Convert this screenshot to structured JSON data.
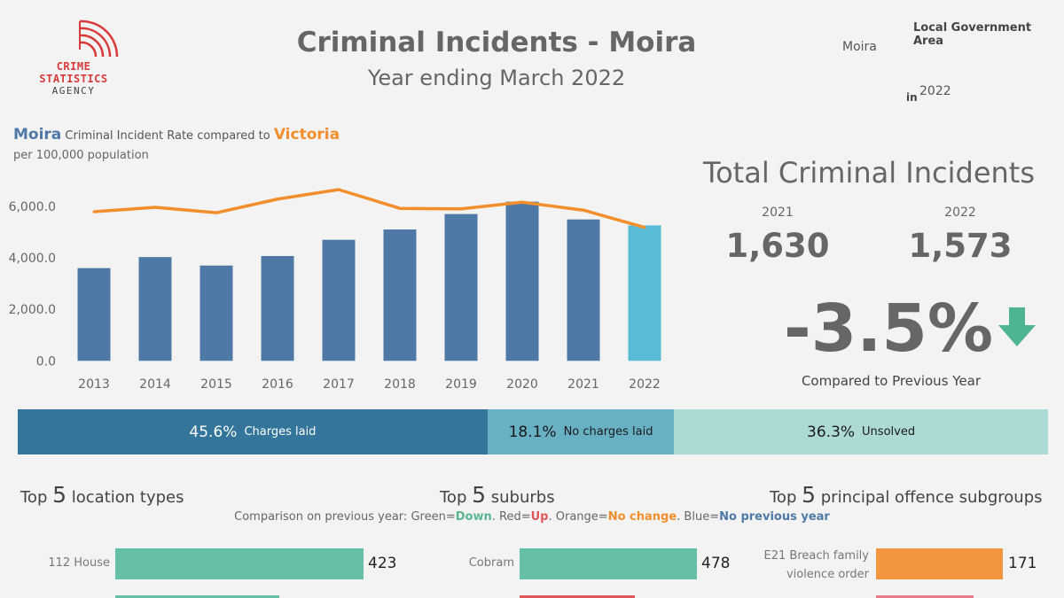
{
  "brand": {
    "logo_line1": "CRIME",
    "logo_line2": "STATISTICS",
    "logo_line3": "AGENCY",
    "accent": "#d83a3a"
  },
  "header": {
    "title": "Criminal Incidents - Moira",
    "subtitle": "Year ending March 2022"
  },
  "filters": {
    "lga_label": "Local Government Area",
    "lga_value": "Moira",
    "in_label": "in",
    "year_value": "2022"
  },
  "rate_chart": {
    "lga_name": "Moira",
    "middle_text": "Criminal Incident Rate",
    "compared_text": "compared to",
    "state_name": "Victoria",
    "subtitle": "per 100,000 population"
  },
  "chart_data": {
    "type": "bar",
    "title": "Moira Criminal Incident Rate compared to Victoria",
    "ylabel": "per 100,000 population",
    "categories": [
      "2013",
      "2014",
      "2015",
      "2016",
      "2017",
      "2018",
      "2019",
      "2020",
      "2021",
      "2022"
    ],
    "series": [
      {
        "name": "Moira",
        "type": "bar",
        "values": [
          3600,
          4030,
          3700,
          4070,
          4700,
          5100,
          5700,
          6180,
          5490,
          5260
        ],
        "color": "#4e79a7",
        "highlight_color": "#59bcd6"
      },
      {
        "name": "Victoria",
        "type": "line",
        "values": [
          5790,
          5960,
          5750,
          6280,
          6650,
          5920,
          5900,
          6160,
          5850,
          5180
        ],
        "color": "#f28e2b"
      }
    ],
    "yticks": [
      "6,000.0",
      "4,000.0",
      "2,000.0",
      "0.0"
    ],
    "ytick_values": [
      6000,
      4000,
      2000,
      0
    ],
    "ylim": [
      -300,
      7200
    ],
    "grid": false,
    "legend": "none"
  },
  "totals": {
    "title": "Total Criminal Incidents",
    "prev_year": "2021",
    "prev_value": "1,630",
    "curr_year": "2022",
    "curr_value": "1,573",
    "change": "-3.5%",
    "change_label": "Compared to Previous Year",
    "arrow_color": "#4fb590"
  },
  "outcomes": [
    {
      "pct": "45.6%",
      "label": "Charges laid",
      "share": 45.6,
      "color": "#33759b",
      "text_color": "#ffffff"
    },
    {
      "pct": "18.1%",
      "label": "No charges laid",
      "share": 18.1,
      "color": "#68b0c4",
      "text_color": "#1a1a1a"
    },
    {
      "pct": "36.3%",
      "label": "Unsolved",
      "share": 36.3,
      "color": "#acdad5",
      "text_color": "#1a1a1a"
    }
  ],
  "sections": {
    "top_word": "Top",
    "top_n": "5",
    "locations_title": "location types",
    "suburbs_title": "suburbs",
    "offences_title": "principal offence subgroups"
  },
  "legend_line": {
    "prefix": "Comparison on previous year:",
    "green": "Green",
    "eq1": " = ",
    "down": "Down",
    "red": "Red",
    "up": "Up",
    "orange": "Orange",
    "no_change": "No change",
    "blue": "Blue",
    "no_prev": "No previous year"
  },
  "top_locations": [
    {
      "label": "112 House",
      "value": 423,
      "color": "#66c0a8"
    }
  ],
  "top_suburbs": [
    {
      "label": "Cobram",
      "value": 478,
      "color": "#66c0a8"
    }
  ],
  "top_offences": [
    {
      "label_line1": "E21 Breach family",
      "label_line2": "violence order",
      "value": 171,
      "color": "#f2973f"
    }
  ],
  "second_row_colors": {
    "locations": "#66c0a8",
    "suburbs": "#e15759",
    "offences": "#e87a8c"
  }
}
